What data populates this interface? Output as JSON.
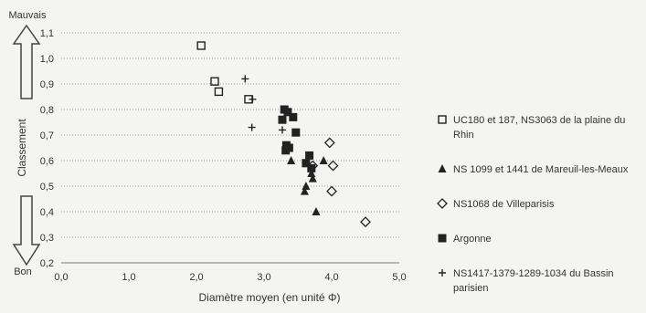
{
  "chart_data": {
    "type": "scatter",
    "xlabel": "Diamètre moyen (en unité Φ)",
    "ylabel": "Classement",
    "xlim": [
      0,
      5
    ],
    "ylim": [
      0.2,
      1.1
    ],
    "x_ticks": [
      "0,0",
      "1,0",
      "2,0",
      "3,0",
      "4,0",
      "5,0"
    ],
    "y_ticks": [
      "0,2",
      "0,3",
      "0,4",
      "0,5",
      "0,6",
      "0,7",
      "0,8",
      "0,9",
      "1,0",
      "1,1"
    ],
    "grid": "horizontal dotted",
    "legend_position": "right",
    "annotations": {
      "top": "Mauvais",
      "bottom": "Bon"
    },
    "series": [
      {
        "name": "UC180 et 187, NS3063 de la plaine du Rhin",
        "marker": "square-open",
        "color": "#222222",
        "points": [
          [
            2.07,
            1.05
          ],
          [
            2.27,
            0.91
          ],
          [
            2.33,
            0.87
          ],
          [
            2.77,
            0.84
          ]
        ]
      },
      {
        "name": "NS 1099 et 1441 de Mareuil-les-Meaux",
        "marker": "triangle-filled",
        "color": "#222222",
        "points": [
          [
            3.4,
            0.6
          ],
          [
            3.62,
            0.5
          ],
          [
            3.6,
            0.48
          ],
          [
            3.7,
            0.55
          ],
          [
            3.72,
            0.53
          ],
          [
            3.88,
            0.6
          ],
          [
            3.77,
            0.4
          ]
        ]
      },
      {
        "name": "NS1068 de Villeparisis",
        "marker": "diamond-open",
        "color": "#222222",
        "points": [
          [
            3.72,
            0.58
          ],
          [
            3.97,
            0.67
          ],
          [
            4.02,
            0.58
          ],
          [
            4.0,
            0.48
          ],
          [
            4.5,
            0.36
          ]
        ]
      },
      {
        "name": "Argonne",
        "marker": "square-filled",
        "color": "#222222",
        "points": [
          [
            3.3,
            0.8
          ],
          [
            3.35,
            0.79
          ],
          [
            3.43,
            0.77
          ],
          [
            3.27,
            0.76
          ],
          [
            3.47,
            0.71
          ],
          [
            3.33,
            0.66
          ],
          [
            3.37,
            0.65
          ],
          [
            3.32,
            0.64
          ],
          [
            3.67,
            0.62
          ],
          [
            3.62,
            0.59
          ],
          [
            3.7,
            0.57
          ]
        ]
      },
      {
        "name": "NS1417-1379-1289-1034 du Bassin parisien",
        "marker": "plus",
        "color": "#222222",
        "points": [
          [
            2.72,
            0.92
          ],
          [
            2.83,
            0.84
          ],
          [
            2.82,
            0.73
          ],
          [
            3.27,
            0.72
          ]
        ]
      }
    ]
  }
}
